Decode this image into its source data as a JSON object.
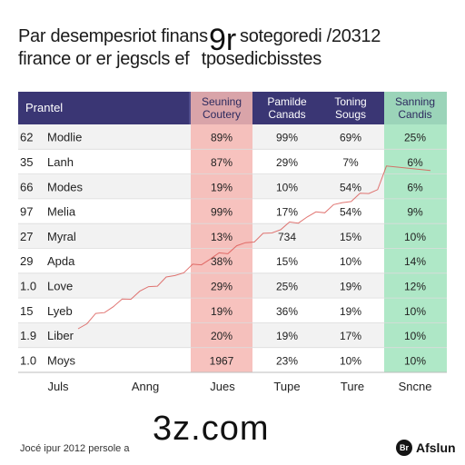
{
  "page": {
    "title_line1": "Par desempesriot finans",
    "title_line1b": "sotegoredi /20312",
    "title_line2": "firance or er jegscls ef",
    "title_line2b": "tposedicbisstes",
    "watermark_top": "9r",
    "watermark_bottom": "3z.com",
    "footer_text": "Jocé ipur 2012 persole a",
    "brand_name": "Afslun",
    "brand_badge": "Br"
  },
  "colors": {
    "header_bg": "#3a3674",
    "header_text": "#ffffff",
    "red_column": "#f6b7b3",
    "green_column": "#a6e6c1",
    "row_alt": "#f2f2f2",
    "trend_line": "#d9534f"
  },
  "chart_data": {
    "type": "table",
    "columns": [
      {
        "line1": "Prantel",
        "line2": ""
      },
      {
        "line1": "Seuning",
        "line2": "Coutery"
      },
      {
        "line1": "Pamilde",
        "line2": "Canads"
      },
      {
        "line1": "Toning",
        "line2": "Sougs"
      },
      {
        "line1": "Sanning",
        "line2": "Candis"
      }
    ],
    "rows": [
      {
        "num": "62",
        "name": "Modlie",
        "values": [
          "89%",
          "99%",
          "69%",
          "25%"
        ]
      },
      {
        "num": "35",
        "name": "Lanh",
        "values": [
          "87%",
          "29%",
          "7%",
          "6%"
        ]
      },
      {
        "num": "66",
        "name": "Modes",
        "values": [
          "19%",
          "10%",
          "54%",
          "6%"
        ]
      },
      {
        "num": "97",
        "name": "Melia",
        "values": [
          "99%",
          "17%",
          "54%",
          "9%"
        ]
      },
      {
        "num": "27",
        "name": "Myral",
        "values": [
          "13%",
          "734",
          "15%",
          "10%"
        ]
      },
      {
        "num": "29",
        "name": "Apda",
        "values": [
          "38%",
          "15%",
          "10%",
          "14%"
        ]
      },
      {
        "num": "1.0",
        "name": "Love",
        "values": [
          "29%",
          "25%",
          "19%",
          "12%"
        ]
      },
      {
        "num": "15",
        "name": "Lyeb",
        "values": [
          "19%",
          "36%",
          "19%",
          "10%"
        ]
      },
      {
        "num": "1.9",
        "name": "Liber",
        "values": [
          "20%",
          "19%",
          "17%",
          "10%"
        ]
      },
      {
        "num": "1.0",
        "name": "Moys",
        "values": [
          "1967",
          "23%",
          "10%",
          "10%"
        ]
      }
    ],
    "x_labels": [
      "Juls",
      "Anng",
      "Jues",
      "Tupe",
      "Ture",
      "Sncne"
    ]
  }
}
